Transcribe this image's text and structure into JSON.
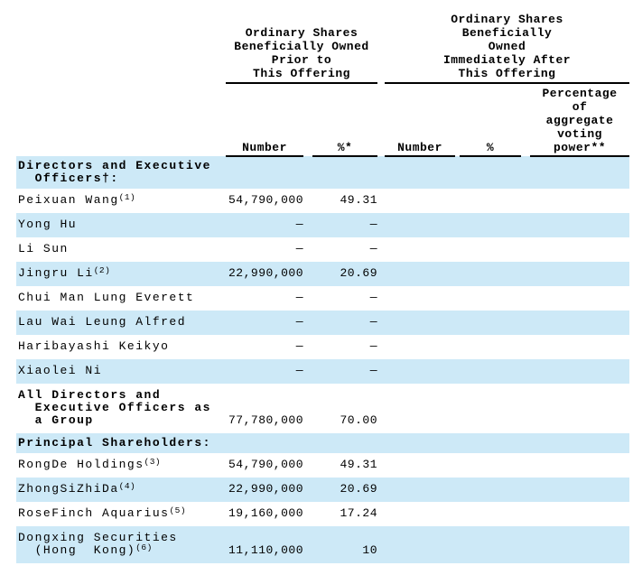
{
  "colors": {
    "row_band": "#cde9f7",
    "text": "#000000",
    "rule": "#000000"
  },
  "table": {
    "group_headers": [
      "Ordinary Shares\nBeneficially Owned\nPrior to\nThis Offering",
      "Ordinary Shares\nBeneficially\nOwned\nImmediately After\nThis Offering"
    ],
    "col_headers": [
      "Number",
      "%*",
      "Number",
      "%",
      "Percentage\nof\naggregate\nvoting\npower**"
    ],
    "rows": [
      {
        "name": "Directors and Executive\n  Officers†:"
      },
      {
        "name": "Peixuan Wang",
        "sup": "(1)",
        "num_prior": "54,790,000",
        "pct_prior": "49.31"
      },
      {
        "name": "Yong Hu",
        "num_prior": "—",
        "pct_prior": "—"
      },
      {
        "name": "Li Sun",
        "num_prior": "—",
        "pct_prior": "—"
      },
      {
        "name": "Jingru Li",
        "sup": "(2)",
        "num_prior": "22,990,000",
        "pct_prior": "20.69"
      },
      {
        "name": "Chui Man Lung Everett",
        "num_prior": "—",
        "pct_prior": "—"
      },
      {
        "name": "Lau Wai Leung Alfred",
        "num_prior": "—",
        "pct_prior": "—"
      },
      {
        "name": "Haribayashi Keikyo",
        "num_prior": "—",
        "pct_prior": "—"
      },
      {
        "name": "Xiaolei Ni",
        "num_prior": "—",
        "pct_prior": "—"
      },
      {
        "name": "All Directors and\n  Executive Officers as\n  a Group",
        "num_prior": "77,780,000",
        "pct_prior": "70.00"
      },
      {
        "name": "Principal Shareholders:"
      },
      {
        "name": "RongDe Holdings",
        "sup": "(3)",
        "num_prior": "54,790,000",
        "pct_prior": "49.31"
      },
      {
        "name": "ZhongSiZhiDa",
        "sup": "(4)",
        "num_prior": "22,990,000",
        "pct_prior": "20.69"
      },
      {
        "name": "RoseFinch Aquarius",
        "sup": "(5)",
        "num_prior": "19,160,000",
        "pct_prior": "17.24"
      },
      {
        "name": "Dongxing Securities\n  (Hong  Kong)",
        "sup": "(6)",
        "num_prior": "11,110,000",
        "pct_prior": "10"
      }
    ]
  }
}
